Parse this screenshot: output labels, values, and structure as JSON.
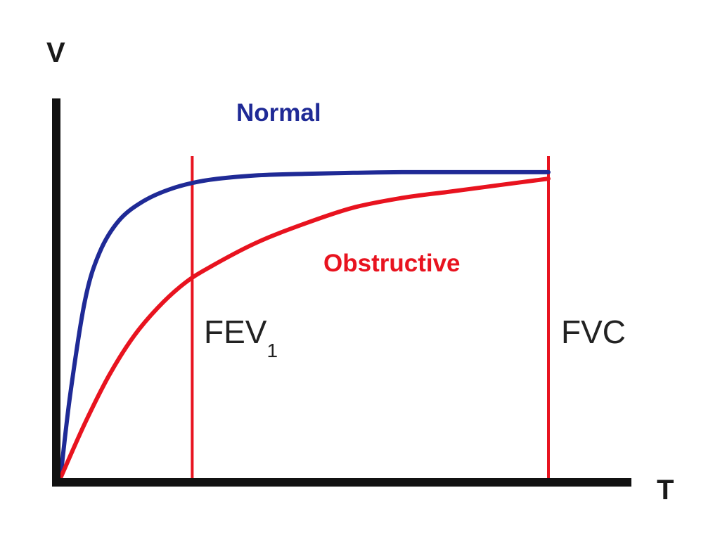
{
  "chart_data": {
    "type": "line",
    "xlabel": "T",
    "ylabel": "V",
    "xlim": [
      0,
      1
    ],
    "ylim": [
      0,
      1
    ],
    "grid": false,
    "legend": "none",
    "series": [
      {
        "name": "Normal",
        "color": "#1f2a96",
        "x": [
          0,
          0.02,
          0.05,
          0.08,
          0.12,
          0.17,
          0.23,
          0.3,
          0.4,
          0.5,
          0.6,
          0.7,
          0.8,
          0.9,
          1.0
        ],
        "y": [
          0,
          0.26,
          0.55,
          0.7,
          0.8,
          0.86,
          0.9,
          0.925,
          0.94,
          0.945,
          0.948,
          0.95,
          0.95,
          0.95,
          0.95
        ]
      },
      {
        "name": "Obstructive",
        "color": "#e8131f",
        "x": [
          0,
          0.05,
          0.1,
          0.15,
          0.2,
          0.25,
          0.3,
          0.4,
          0.5,
          0.6,
          0.7,
          0.8,
          0.9,
          1.0
        ],
        "y": [
          0,
          0.17,
          0.32,
          0.44,
          0.53,
          0.6,
          0.65,
          0.73,
          0.79,
          0.84,
          0.87,
          0.89,
          0.91,
          0.93
        ]
      }
    ],
    "markers": [
      {
        "label": "FEV",
        "subscript": "1",
        "x": 0.27,
        "color": "#e8131f"
      },
      {
        "label": "FVC",
        "subscript": "",
        "x": 1.0,
        "color": "#e8131f"
      }
    ],
    "axis_color": "#111111"
  }
}
